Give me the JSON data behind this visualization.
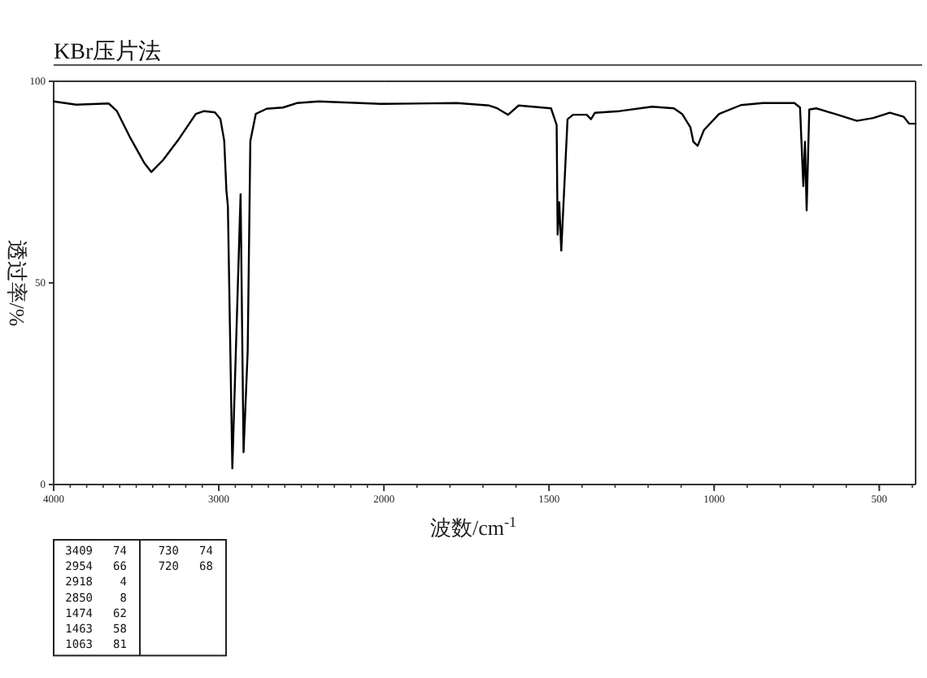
{
  "chart_data": [
    {
      "type": "line",
      "title": "KBr压片法",
      "ylabel": "透过率/%",
      "xlim": [
        4000,
        2000
      ],
      "xticks": [
        4000,
        3000,
        2000
      ],
      "ylim": [
        0,
        100
      ],
      "yticks": [
        0,
        50,
        100
      ],
      "series": [
        {
          "color": "#000000",
          "x": [
            4000,
            3864,
            3666,
            3617,
            3535,
            3452,
            3409,
            3337,
            3238,
            3139,
            3089,
            3023,
            2990,
            2967,
            2954,
            2945,
            2918,
            2868,
            2850,
            2825,
            2809,
            2776,
            2710,
            2611,
            2528,
            2396,
            2020,
            2000
          ],
          "values": [
            95,
            94.2,
            94.5,
            92.6,
            85.9,
            79.8,
            77.5,
            80.5,
            85.9,
            91.9,
            92.6,
            92.3,
            90.6,
            85.2,
            73,
            69,
            4,
            72,
            8,
            33,
            85.2,
            91.9,
            93.2,
            93.5,
            94.6,
            95,
            94.4,
            94.4
          ]
        }
      ],
      "annotations": [
        "3409 74",
        "2954 66",
        "2918 4",
        "2850 8",
        "1474 62",
        "1463 58",
        "1063 81",
        "730 74",
        "720 68"
      ]
    },
    {
      "type": "line",
      "xlabel": "波数/cm$^{-1}$",
      "tick_labels": "x",
      "xlim": [
        2000,
        390
      ],
      "xticks": [
        1500,
        1000,
        500
      ],
      "ylim": [
        0,
        100
      ],
      "series": [
        {
          "color": "#000000",
          "x": [
            2000,
            1779,
            1681,
            1657,
            1624,
            1592,
            1494,
            1477,
            1474,
            1469,
            1463,
            1444,
            1427,
            1386,
            1373,
            1361,
            1287,
            1188,
            1122,
            1097,
            1072,
            1063,
            1050,
            1031,
            985,
            919,
            853,
            757,
            740,
            730,
            725,
            720,
            712,
            691,
            634,
            568,
            518,
            468,
            426,
            410,
            390
          ],
          "values": [
            94.4,
            94.6,
            94,
            93.3,
            91.7,
            94,
            93.3,
            89.2,
            62,
            70,
            58,
            90.6,
            91.7,
            91.7,
            90.6,
            92.2,
            92.6,
            93.7,
            93.3,
            91.9,
            88.6,
            85,
            84,
            87.9,
            91.9,
            94.1,
            94.6,
            94.6,
            93.5,
            74,
            85,
            68,
            93,
            93.3,
            91.9,
            90.2,
            90.9,
            92.2,
            91.2,
            89.5,
            89.5
          ]
        }
      ]
    }
  ]
}
